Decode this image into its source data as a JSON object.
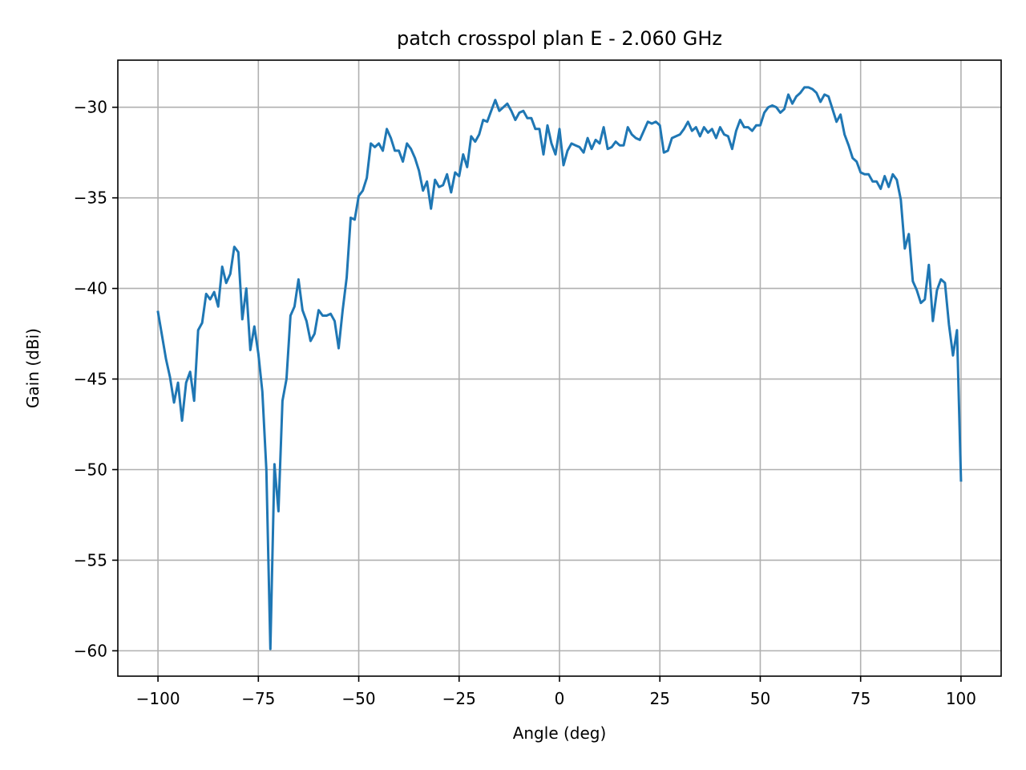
{
  "chart_data": {
    "type": "line",
    "title": "patch crosspol plan E - 2.060 GHz",
    "xlabel": "Angle (deg)",
    "ylabel": "Gain (dBi)",
    "xlim": [
      -110,
      110
    ],
    "ylim": [
      -61.4,
      -27.4
    ],
    "xticks": [
      -100,
      -75,
      -50,
      -25,
      0,
      25,
      50,
      75,
      100
    ],
    "xtick_labels": [
      "−100",
      "−75",
      "−50",
      "−25",
      "0",
      "25",
      "50",
      "75",
      "100"
    ],
    "yticks": [
      -60,
      -55,
      -50,
      -45,
      -40,
      -35,
      -30
    ],
    "ytick_labels": [
      "−60",
      "−55",
      "−50",
      "−45",
      "−40",
      "−35",
      "−30"
    ],
    "grid": true,
    "legend": "none",
    "series": [
      {
        "color": "#1f77b4",
        "x": [
          -100,
          -99,
          -98,
          -97,
          -96,
          -95,
          -94,
          -93,
          -92,
          -91,
          -90,
          -89,
          -88,
          -87,
          -86,
          -85,
          -84,
          -83,
          -82,
          -81,
          -80,
          -79,
          -78,
          -77,
          -76,
          -75,
          -74,
          -73,
          -72,
          -71,
          -70,
          -69,
          -68,
          -67,
          -66,
          -65,
          -64,
          -63,
          -62,
          -61,
          -60,
          -59,
          -58,
          -57,
          -56,
          -55,
          -54,
          -53,
          -52,
          -51,
          -50,
          -49,
          -48,
          -47,
          -46,
          -45,
          -44,
          -43,
          -42,
          -41,
          -40,
          -39,
          -38,
          -37,
          -36,
          -35,
          -34,
          -33,
          -32,
          -31,
          -30,
          -29,
          -28,
          -27,
          -26,
          -25,
          -24,
          -23,
          -22,
          -21,
          -20,
          -19,
          -18,
          -17,
          -16,
          -15,
          -14,
          -13,
          -12,
          -11,
          -10,
          -9,
          -8,
          -7,
          -6,
          -5,
          -4,
          -3,
          -2,
          -1,
          0,
          1,
          2,
          3,
          4,
          5,
          6,
          7,
          8,
          9,
          10,
          11,
          12,
          13,
          14,
          15,
          16,
          17,
          18,
          19,
          20,
          21,
          22,
          23,
          24,
          25,
          26,
          27,
          28,
          29,
          30,
          31,
          32,
          33,
          34,
          35,
          36,
          37,
          38,
          39,
          40,
          41,
          42,
          43,
          44,
          45,
          46,
          47,
          48,
          49,
          50,
          51,
          52,
          53,
          54,
          55,
          56,
          57,
          58,
          59,
          60,
          61,
          62,
          63,
          64,
          65,
          66,
          67,
          68,
          69,
          70,
          71,
          72,
          73,
          74,
          75,
          76,
          77,
          78,
          79,
          80,
          81,
          82,
          83,
          84,
          85,
          86,
          87,
          88,
          89,
          90,
          91,
          92,
          93,
          94,
          95,
          96,
          97,
          98,
          99,
          100
        ],
        "y": [
          -41.3,
          -42.6,
          -43.9,
          -44.9,
          -46.3,
          -45.2,
          -47.3,
          -45.2,
          -44.6,
          -46.2,
          -42.3,
          -41.9,
          -40.3,
          -40.6,
          -40.2,
          -41.0,
          -38.8,
          -39.7,
          -39.2,
          -37.7,
          -38.0,
          -41.7,
          -40.0,
          -43.4,
          -42.1,
          -43.6,
          -45.7,
          -50.0,
          -59.9,
          -49.7,
          -52.3,
          -46.2,
          -45.0,
          -41.5,
          -41.0,
          -39.5,
          -41.2,
          -41.8,
          -42.9,
          -42.5,
          -41.2,
          -41.5,
          -41.5,
          -41.4,
          -41.8,
          -43.3,
          -41.2,
          -39.4,
          -36.1,
          -36.2,
          -34.9,
          -34.6,
          -33.9,
          -32.0,
          -32.2,
          -32.0,
          -32.4,
          -31.2,
          -31.7,
          -32.4,
          -32.4,
          -33.0,
          -32.0,
          -32.3,
          -32.8,
          -33.5,
          -34.6,
          -34.1,
          -35.6,
          -34.0,
          -34.4,
          -34.3,
          -33.7,
          -34.7,
          -33.6,
          -33.8,
          -32.6,
          -33.3,
          -31.6,
          -31.9,
          -31.5,
          -30.7,
          -30.8,
          -30.2,
          -29.6,
          -30.2,
          -30.0,
          -29.8,
          -30.2,
          -30.7,
          -30.3,
          -30.2,
          -30.6,
          -30.6,
          -31.2,
          -31.2,
          -32.6,
          -31.0,
          -32.0,
          -32.6,
          -31.2,
          -33.2,
          -32.4,
          -32.0,
          -32.1,
          -32.2,
          -32.5,
          -31.7,
          -32.3,
          -31.8,
          -32.0,
          -31.1,
          -32.3,
          -32.2,
          -31.9,
          -32.1,
          -32.1,
          -31.1,
          -31.5,
          -31.7,
          -31.8,
          -31.3,
          -30.8,
          -30.9,
          -30.8,
          -31.0,
          -32.5,
          -32.4,
          -31.7,
          -31.6,
          -31.5,
          -31.2,
          -30.8,
          -31.3,
          -31.1,
          -31.6,
          -31.1,
          -31.4,
          -31.2,
          -31.7,
          -31.1,
          -31.5,
          -31.6,
          -32.3,
          -31.3,
          -30.7,
          -31.1,
          -31.1,
          -31.3,
          -31.0,
          -31.0,
          -30.3,
          -30.0,
          -29.9,
          -30.0,
          -30.3,
          -30.1,
          -29.3,
          -29.8,
          -29.4,
          -29.2,
          -28.9,
          -28.9,
          -29.0,
          -29.2,
          -29.7,
          -29.3,
          -29.4,
          -30.1,
          -30.8,
          -30.4,
          -31.5,
          -32.1,
          -32.8,
          -33.0,
          -33.6,
          -33.7,
          -33.7,
          -34.1,
          -34.1,
          -34.5,
          -33.8,
          -34.4,
          -33.7,
          -34.0,
          -35.1,
          -37.8,
          -37.0,
          -39.6,
          -40.1,
          -40.8,
          -40.6,
          -38.7,
          -41.8,
          -40.1,
          -39.5,
          -39.7,
          -42.0,
          -43.7,
          -42.3,
          -50.6
        ]
      }
    ]
  }
}
